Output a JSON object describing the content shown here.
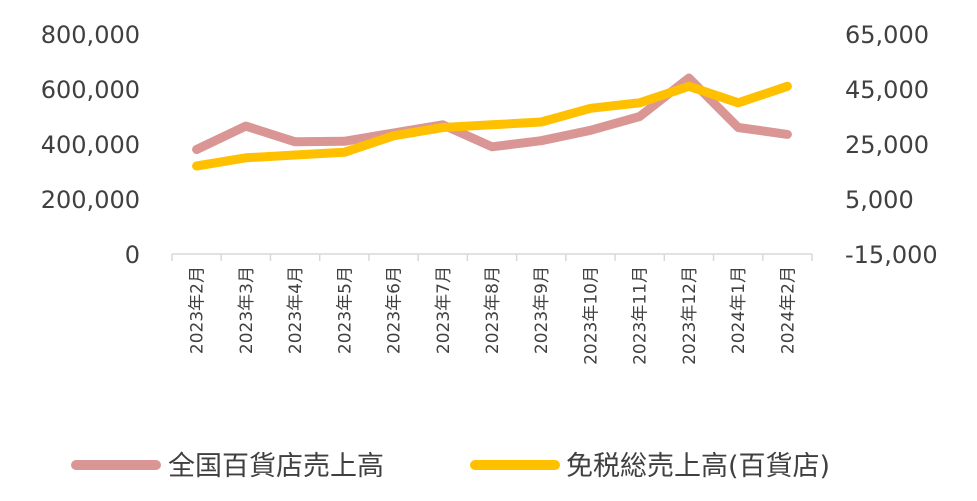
{
  "chart_data": {
    "type": "line",
    "categories": [
      "2023年2月",
      "2023年3月",
      "2023年4月",
      "2023年5月",
      "2023年6月",
      "2023年7月",
      "2023年8月",
      "2023年9月",
      "2023年10月",
      "2023年11月",
      "2023年12月",
      "2024年1月",
      "2024年2月"
    ],
    "series": [
      {
        "name": "全国百貨店売上高",
        "axis": "left",
        "color": "#D99694",
        "values": [
          380000,
          465000,
          408000,
          410000,
          440000,
          470000,
          390000,
          412000,
          450000,
          500000,
          640000,
          460000,
          435000
        ]
      },
      {
        "name": "免税総売上高(百貨店)",
        "axis": "right",
        "color": "#FFC000",
        "values": [
          17000,
          20000,
          21000,
          22000,
          28000,
          31000,
          32000,
          33000,
          38000,
          40000,
          46000,
          40000,
          46000
        ]
      }
    ],
    "y_left": {
      "min": 0,
      "max": 800000,
      "ticks": [
        "0",
        "200,000",
        "400,000",
        "600,000",
        "800,000"
      ]
    },
    "y_right": {
      "min": -15000,
      "max": 65000,
      "ticks": [
        "-15,000",
        "5,000",
        "25,000",
        "45,000",
        "65,000"
      ]
    },
    "grid": false,
    "legend": "bottom"
  }
}
